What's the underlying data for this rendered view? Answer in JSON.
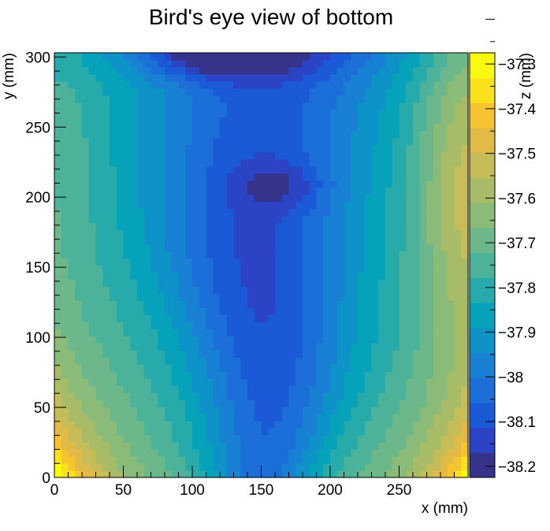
{
  "chart_data": {
    "type": "heatmap",
    "title": "Bird's eye view of bottom",
    "xlabel": "x (mm)",
    "ylabel": "y (mm)",
    "zlabel": "z (mm)",
    "xlim": [
      0,
      300
    ],
    "ylim": [
      0,
      303
    ],
    "zlim": [
      -38.225,
      -37.275
    ],
    "x_ticks": [
      "0",
      "50",
      "100",
      "150",
      "200",
      "250"
    ],
    "y_ticks": [
      "0",
      "50",
      "100",
      "150",
      "200",
      "250",
      "300"
    ],
    "z_ticks": [
      "-37.3",
      "-37.4",
      "-37.5",
      "-37.6",
      "-37.7",
      "-37.8",
      "-37.9",
      "-38",
      "-38.1",
      "-38.2"
    ],
    "z_tick_labels": [
      "−37.3",
      "−37.4",
      "−37.5",
      "−37.6",
      "−37.7",
      "−37.8",
      "−37.9",
      "−38",
      "−38.1",
      "−38.2"
    ],
    "colormap": [
      "#35348a",
      "#2a44c5",
      "#1b5ad6",
      "#1c6ed8",
      "#1981d4",
      "#0e93c8",
      "#06a2b9",
      "#27abaa",
      "#4cb39a",
      "#6cb88a",
      "#8abb78",
      "#a8bc67",
      "#c6bc58",
      "#e2bb47",
      "#f6c431",
      "#fbe11c",
      "#f9f90e"
    ],
    "grid": false,
    "legend": "colorbar-right"
  }
}
